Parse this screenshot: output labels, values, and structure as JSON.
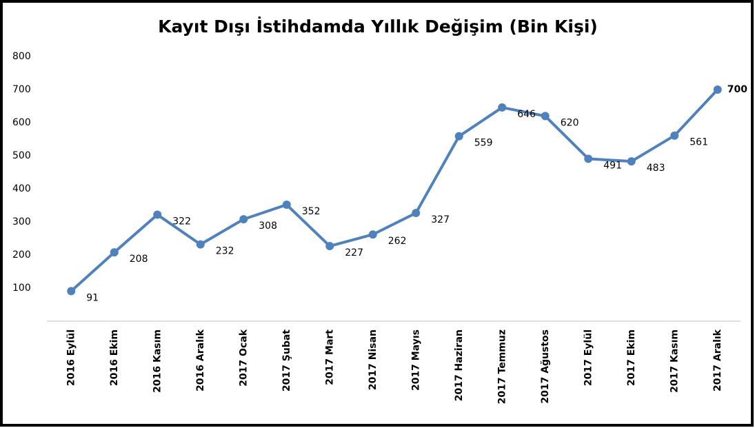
{
  "chart_data": {
    "type": "line",
    "title": "Kayıt Dışı İstihdamda Yıllık Değişim (Bin Kişi)",
    "categories": [
      "2016 Eylül",
      "2016 Ekim",
      "2016 Kasım",
      "2016 Aralık",
      "2017 Ocak",
      "2017 Şubat",
      "2017 Mart",
      "2017 Nisan",
      "2017 Mayıs",
      "2017 Haziran",
      "2017 Temmuz",
      "2017 Ağustos",
      "2017 Eylül",
      "2017 Ekim",
      "2017 Kasım",
      "2017 Aralık"
    ],
    "values": [
      91,
      208,
      322,
      232,
      308,
      352,
      227,
      262,
      327,
      559,
      646,
      620,
      491,
      483,
      561,
      700
    ],
    "color": "#4f81bd",
    "value_label_colors": [
      "#000000",
      "#000000",
      "#000000",
      "#000000",
      "#000000",
      "#000000",
      "#000000",
      "#000000",
      "#000000",
      "#000000",
      "#000000",
      "#000000",
      "#000000",
      "#000000",
      "#000000",
      "#ff0000"
    ],
    "ylim": [
      0,
      800
    ],
    "yticks": [
      100,
      200,
      300,
      400,
      500,
      600,
      700,
      800
    ],
    "grid": false
  }
}
